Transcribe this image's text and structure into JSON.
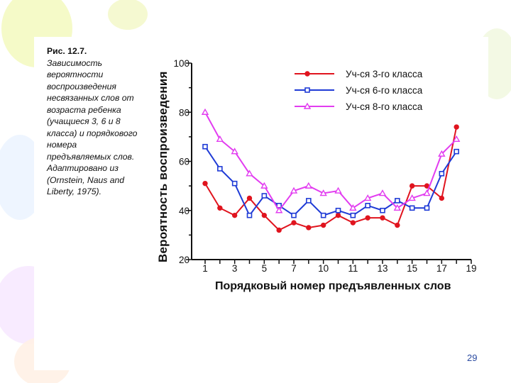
{
  "caption": {
    "fig_label": "Рис. 12.7.",
    "text": "Зависимость вероятности воспроизведения несвязанных слов от возраста ребенка (учащиеся 3, 6 и 8 класса) и порядкового номера предъявляемых слов. Адаптировано из (Ornstein, Naus and Liberty, 1975)."
  },
  "page_number": "29",
  "colors": {
    "series_red": "#e0141e",
    "series_blue": "#1f3bd6",
    "series_magenta": "#e23cf0",
    "axis": "#111111",
    "decor": "#eef5a8"
  },
  "chart_data": {
    "type": "line",
    "ylabel": "Вероятность воспроизведения",
    "xlabel": "Порядковый номер предъявленных слов",
    "xlim": [
      1,
      19
    ],
    "ylim": [
      20,
      100
    ],
    "xticks": [
      "1",
      "3",
      "5",
      "7",
      "10",
      "11",
      "13",
      "15",
      "17",
      "19"
    ],
    "yticks": [
      "20",
      "40",
      "60",
      "80",
      "100"
    ],
    "x": [
      1,
      2,
      3,
      4,
      5,
      6,
      7,
      8,
      9,
      10,
      11,
      12,
      13,
      14,
      15,
      16,
      17,
      18
    ],
    "series": [
      {
        "name": "Уч-ся 3-го класса",
        "color": "#e0141e",
        "marker": "circle",
        "values": [
          51,
          41,
          38,
          45,
          38,
          32,
          35,
          33,
          34,
          38,
          35,
          37,
          37,
          34,
          50,
          50,
          45,
          74
        ]
      },
      {
        "name": "Уч-ся 6-го класса",
        "color": "#1f3bd6",
        "marker": "square",
        "values": [
          66,
          57,
          51,
          38,
          46,
          42,
          38,
          44,
          38,
          40,
          38,
          42,
          40,
          44,
          41,
          41,
          55,
          64
        ]
      },
      {
        "name": "Уч-ся 8-го класса",
        "color": "#e23cf0",
        "marker": "triangle",
        "values": [
          80,
          69,
          64,
          55,
          50,
          40,
          48,
          50,
          47,
          48,
          41,
          45,
          47,
          41,
          45,
          47,
          63,
          69
        ]
      }
    ]
  }
}
